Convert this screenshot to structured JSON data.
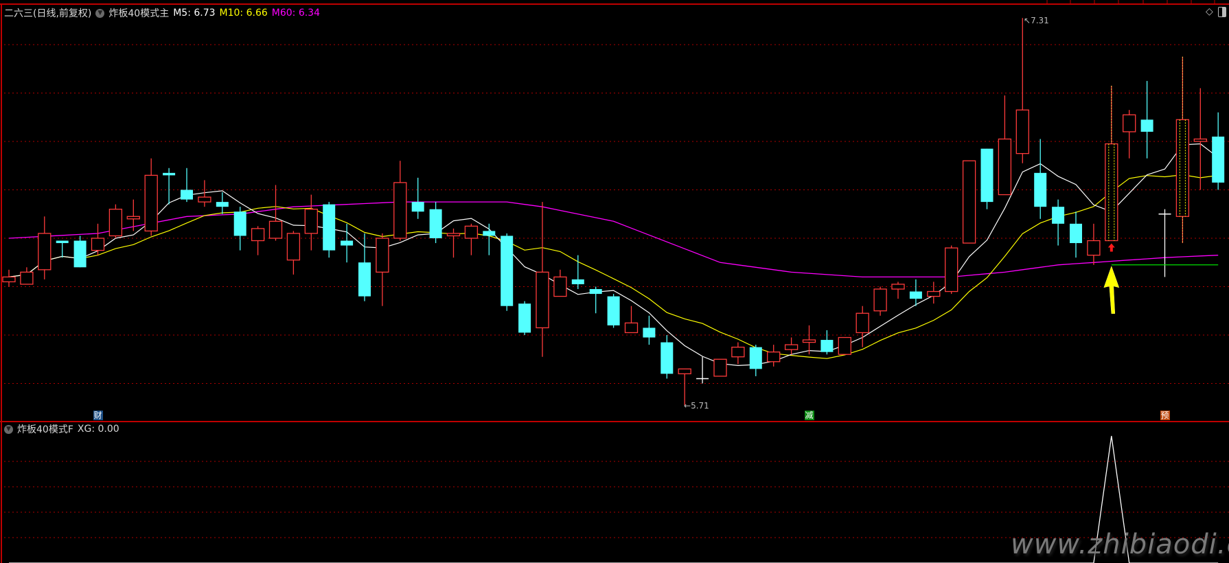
{
  "main_panel": {
    "title": "二六三(日线,前复权)",
    "indicator": "炸板40模式主",
    "ma5_label": "M5: 6.73",
    "ma10_label": "M10: 6.66",
    "ma60_label": "M60: 6.34",
    "high_label": "7.31",
    "low_label": "5.71"
  },
  "sub_panel": {
    "indicator": "炸板40模式F",
    "xg_label": "XG: 0.00"
  },
  "markers": [
    {
      "text": "财",
      "index": 5,
      "color": "#1d4f86"
    },
    {
      "text": "减",
      "index": 45,
      "color": "#0b8a12"
    },
    {
      "text": "预",
      "index": 65,
      "color": "#c04a10"
    }
  ],
  "toolbar_icons": [
    "diamond-icon",
    "panel-toggle-icon"
  ],
  "watermark": "www.zhibiaodi.com",
  "colors": {
    "up": "#ff3b3b",
    "down": "#54ffff",
    "doji": "#ffffff",
    "ma5": "#ffffff",
    "ma10": "#ffff00",
    "ma60": "#ff00ff",
    "grid": "#b00000",
    "support": "#00e000",
    "signal_arrow": "#ffff00"
  },
  "chart_data": {
    "type": "candlestick",
    "price_grid": [
      7.2,
      7.0,
      6.8,
      6.6,
      6.4,
      6.2,
      6.0,
      5.8
    ],
    "ohlc": [
      [
        6.22,
        6.27,
        6.2,
        6.24
      ],
      [
        6.21,
        6.28,
        6.21,
        6.26
      ],
      [
        6.27,
        6.49,
        6.23,
        6.42
      ],
      [
        6.39,
        6.39,
        6.32,
        6.38
      ],
      [
        6.39,
        6.41,
        6.28,
        6.28
      ],
      [
        6.35,
        6.46,
        6.33,
        6.4
      ],
      [
        6.41,
        6.54,
        6.4,
        6.52
      ],
      [
        6.48,
        6.56,
        6.43,
        6.49
      ],
      [
        6.43,
        6.73,
        6.41,
        6.66
      ],
      [
        6.67,
        6.69,
        6.54,
        6.66
      ],
      [
        6.6,
        6.69,
        6.55,
        6.56
      ],
      [
        6.55,
        6.64,
        6.53,
        6.57
      ],
      [
        6.55,
        6.59,
        6.5,
        6.53
      ],
      [
        6.51,
        6.53,
        6.35,
        6.41
      ],
      [
        6.39,
        6.45,
        6.33,
        6.44
      ],
      [
        6.4,
        6.62,
        6.39,
        6.47
      ],
      [
        6.31,
        6.43,
        6.25,
        6.42
      ],
      [
        6.42,
        6.58,
        6.35,
        6.52
      ],
      [
        6.54,
        6.55,
        6.32,
        6.35
      ],
      [
        6.39,
        6.46,
        6.3,
        6.37
      ],
      [
        6.3,
        6.42,
        6.14,
        6.16
      ],
      [
        6.26,
        6.42,
        6.12,
        6.4
      ],
      [
        6.4,
        6.72,
        6.39,
        6.63
      ],
      [
        6.55,
        6.65,
        6.48,
        6.51
      ],
      [
        6.52,
        6.55,
        6.38,
        6.4
      ],
      [
        6.41,
        6.44,
        6.32,
        6.42
      ],
      [
        6.4,
        6.46,
        6.33,
        6.45
      ],
      [
        6.43,
        6.46,
        6.33,
        6.41
      ],
      [
        6.41,
        6.42,
        6.1,
        6.12
      ],
      [
        6.13,
        6.14,
        6.0,
        6.01
      ],
      [
        6.03,
        6.55,
        5.91,
        6.26
      ],
      [
        6.16,
        6.27,
        6.16,
        6.24
      ],
      [
        6.23,
        6.33,
        6.19,
        6.21
      ],
      [
        6.19,
        6.2,
        6.09,
        6.17
      ],
      [
        6.16,
        6.17,
        6.03,
        6.04
      ],
      [
        6.01,
        6.12,
        6.01,
        6.05
      ],
      [
        6.03,
        6.08,
        5.96,
        5.99
      ],
      [
        5.97,
        6.0,
        5.82,
        5.84
      ],
      [
        5.84,
        5.86,
        5.71,
        5.86
      ],
      [
        5.82,
        5.91,
        5.8,
        5.82
      ],
      [
        5.83,
        5.9,
        5.83,
        5.9
      ],
      [
        5.91,
        5.97,
        5.88,
        5.95
      ],
      [
        5.95,
        5.96,
        5.83,
        5.86
      ],
      [
        5.89,
        5.96,
        5.87,
        5.93
      ],
      [
        5.94,
        5.99,
        5.92,
        5.96
      ],
      [
        5.97,
        6.04,
        5.92,
        5.98
      ],
      [
        5.98,
        6.02,
        5.92,
        5.93
      ],
      [
        5.92,
        5.99,
        5.92,
        5.99
      ],
      [
        6.01,
        6.12,
        5.95,
        6.09
      ],
      [
        6.1,
        6.2,
        6.08,
        6.19
      ],
      [
        6.19,
        6.22,
        6.15,
        6.21
      ],
      [
        6.18,
        6.23,
        6.12,
        6.15
      ],
      [
        6.16,
        6.22,
        6.13,
        6.18
      ],
      [
        6.18,
        6.37,
        6.17,
        6.36
      ],
      [
        6.38,
        6.72,
        6.38,
        6.72
      ],
      [
        6.77,
        6.77,
        6.52,
        6.55
      ],
      [
        6.58,
        6.99,
        6.58,
        6.81
      ],
      [
        6.75,
        7.31,
        6.71,
        6.93
      ],
      [
        6.67,
        6.81,
        6.48,
        6.53
      ],
      [
        6.53,
        6.56,
        6.37,
        6.46
      ],
      [
        6.46,
        6.51,
        6.32,
        6.38
      ],
      [
        6.33,
        6.46,
        6.29,
        6.39
      ],
      [
        6.39,
        7.03,
        6.39,
        6.79
      ],
      [
        6.84,
        6.93,
        6.73,
        6.91
      ],
      [
        6.89,
        7.05,
        6.73,
        6.84
      ],
      [
        6.5,
        6.52,
        6.24,
        6.5
      ],
      [
        6.49,
        7.15,
        6.38,
        6.89
      ],
      [
        6.8,
        7.02,
        6.6,
        6.81
      ],
      [
        6.82,
        6.92,
        6.6,
        6.63
      ]
    ],
    "highlighted_candles": [
      62,
      66
    ],
    "signal_index": 62,
    "ma60_points": [
      [
        0,
        6.4
      ],
      [
        5,
        6.42
      ],
      [
        10,
        6.49
      ],
      [
        13,
        6.5
      ],
      [
        16,
        6.53
      ],
      [
        22,
        6.55
      ],
      [
        28,
        6.55
      ],
      [
        30,
        6.53
      ],
      [
        34,
        6.47
      ],
      [
        40,
        6.3
      ],
      [
        44,
        6.26
      ],
      [
        48,
        6.24
      ],
      [
        53,
        6.24
      ],
      [
        56,
        6.26
      ],
      [
        59,
        6.29
      ],
      [
        61,
        6.3
      ],
      [
        63,
        6.31
      ],
      [
        65,
        6.32
      ],
      [
        68,
        6.33
      ]
    ],
    "support_line": {
      "from_index": 62,
      "price": 6.29
    },
    "xg_values": [
      0,
      0,
      0,
      0,
      0,
      0,
      0,
      0,
      0,
      0,
      0,
      0,
      0,
      0,
      0,
      0,
      0,
      0,
      0,
      0,
      0,
      0,
      0,
      0,
      0,
      0,
      0,
      0,
      0,
      0,
      0,
      0,
      0,
      0,
      0,
      0,
      0,
      0,
      0,
      0,
      0,
      0,
      0,
      0,
      0,
      0,
      0,
      0,
      0,
      0,
      0,
      0,
      0,
      0,
      0,
      0,
      0,
      0,
      0,
      0,
      0,
      0,
      1,
      0,
      0,
      0,
      0,
      0,
      0
    ]
  }
}
